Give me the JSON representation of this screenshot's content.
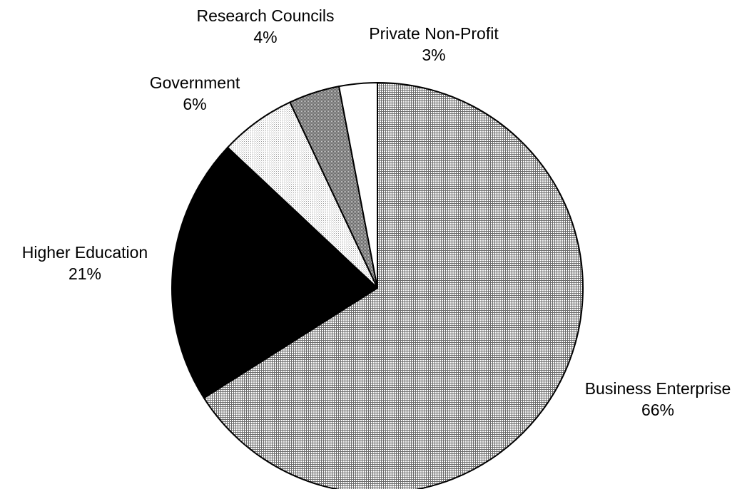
{
  "chart_data": {
    "type": "pie",
    "title": "",
    "start_angle_deg": 0,
    "direction": "clockwise",
    "slices": [
      {
        "label": "Business Enterprise",
        "value": 66,
        "value_label": "66%",
        "fill": "fine-crosshatch",
        "color": "#b5b5b5"
      },
      {
        "label": "Higher Education",
        "value": 21,
        "value_label": "21%",
        "fill": "solid",
        "color": "#000000"
      },
      {
        "label": "Government",
        "value": 6,
        "value_label": "6%",
        "fill": "light-dots",
        "color": "#eeeeee"
      },
      {
        "label": "Research Councils",
        "value": 4,
        "value_label": "4%",
        "fill": "dark-dots",
        "color": "#8c8c8c"
      },
      {
        "label": "Private Non-Profit",
        "value": 3,
        "value_label": "3%",
        "fill": "solid",
        "color": "#ffffff"
      }
    ]
  }
}
